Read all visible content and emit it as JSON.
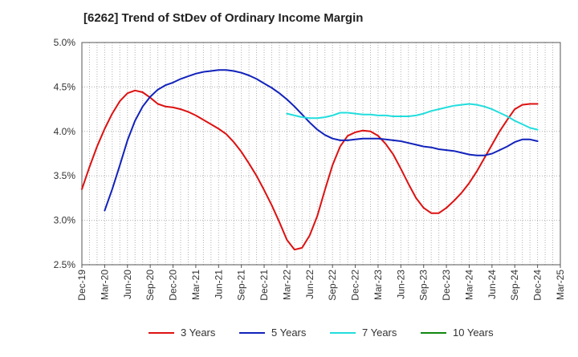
{
  "chart_data": {
    "type": "line",
    "title": "[6262]  Trend of StDev of Ordinary Income Margin",
    "xlabel": "",
    "ylabel": "",
    "x_ticks": [
      "Dec-19",
      "Mar-20",
      "Jun-20",
      "Sep-20",
      "Dec-20",
      "Mar-21",
      "Jun-21",
      "Sep-21",
      "Dec-21",
      "Mar-22",
      "Jun-22",
      "Sep-22",
      "Dec-22",
      "Mar-23",
      "Jun-23",
      "Sep-23",
      "Dec-23",
      "Mar-24",
      "Jun-24",
      "Sep-24",
      "Dec-24",
      "Mar-25"
    ],
    "y_ticks": [
      "2.5%",
      "3.0%",
      "3.5%",
      "4.0%",
      "4.5%",
      "5.0%"
    ],
    "ylim": [
      2.5,
      5.0
    ],
    "grid": true,
    "legend_position": "bottom",
    "series": [
      {
        "name": "3 Years",
        "color": "#dd1111",
        "x": [
          "Dec-19",
          "Jan-20",
          "Feb-20",
          "Mar-20",
          "Apr-20",
          "May-20",
          "Jun-20",
          "Jul-20",
          "Aug-20",
          "Sep-20",
          "Oct-20",
          "Nov-20",
          "Dec-20",
          "Jan-21",
          "Feb-21",
          "Mar-21",
          "Apr-21",
          "May-21",
          "Jun-21",
          "Jul-21",
          "Aug-21",
          "Sep-21",
          "Oct-21",
          "Nov-21",
          "Dec-21",
          "Jan-22",
          "Feb-22",
          "Mar-22",
          "Apr-22",
          "May-22",
          "Jun-22",
          "Jul-22",
          "Aug-22",
          "Sep-22",
          "Oct-22",
          "Nov-22",
          "Dec-22",
          "Jan-23",
          "Feb-23",
          "Mar-23",
          "Apr-23",
          "May-23",
          "Jun-23",
          "Jul-23",
          "Aug-23",
          "Sep-23",
          "Oct-23",
          "Nov-23",
          "Dec-23",
          "Jan-24",
          "Feb-24",
          "Mar-24",
          "Apr-24",
          "May-24",
          "Jun-24",
          "Jul-24",
          "Aug-24",
          "Sep-24",
          "Oct-24",
          "Nov-24",
          "Dec-24"
        ],
        "values": [
          3.35,
          3.6,
          3.83,
          4.03,
          4.2,
          4.34,
          4.43,
          4.46,
          4.44,
          4.38,
          4.31,
          4.28,
          4.27,
          4.25,
          4.22,
          4.18,
          4.13,
          4.08,
          4.03,
          3.97,
          3.88,
          3.77,
          3.64,
          3.5,
          3.34,
          3.17,
          2.98,
          2.78,
          2.67,
          2.69,
          2.83,
          3.05,
          3.34,
          3.62,
          3.83,
          3.95,
          3.99,
          4.01,
          4.0,
          3.95,
          3.86,
          3.74,
          3.58,
          3.41,
          3.25,
          3.14,
          3.08,
          3.08,
          3.14,
          3.22,
          3.31,
          3.42,
          3.55,
          3.7,
          3.85,
          4.0,
          4.13,
          4.25,
          4.3,
          4.31,
          4.31
        ]
      },
      {
        "name": "5 Years",
        "color": "#1122bb",
        "x": [
          "Mar-20",
          "Apr-20",
          "May-20",
          "Jun-20",
          "Jul-20",
          "Aug-20",
          "Sep-20",
          "Oct-20",
          "Nov-20",
          "Dec-20",
          "Jan-21",
          "Feb-21",
          "Mar-21",
          "Apr-21",
          "May-21",
          "Jun-21",
          "Jul-21",
          "Aug-21",
          "Sep-21",
          "Oct-21",
          "Nov-21",
          "Dec-21",
          "Jan-22",
          "Feb-22",
          "Mar-22",
          "Apr-22",
          "May-22",
          "Jun-22",
          "Jul-22",
          "Aug-22",
          "Sep-22",
          "Oct-22",
          "Nov-22",
          "Dec-22",
          "Jan-23",
          "Feb-23",
          "Mar-23",
          "Apr-23",
          "May-23",
          "Jun-23",
          "Jul-23",
          "Aug-23",
          "Sep-23",
          "Oct-23",
          "Nov-23",
          "Dec-23",
          "Jan-24",
          "Feb-24",
          "Mar-24",
          "Apr-24",
          "May-24",
          "Jun-24",
          "Jul-24",
          "Aug-24",
          "Sep-24",
          "Oct-24",
          "Nov-24",
          "Dec-24"
        ],
        "values": [
          3.11,
          3.35,
          3.62,
          3.9,
          4.12,
          4.28,
          4.39,
          4.47,
          4.52,
          4.55,
          4.59,
          4.62,
          4.65,
          4.67,
          4.68,
          4.69,
          4.69,
          4.68,
          4.66,
          4.63,
          4.59,
          4.54,
          4.49,
          4.43,
          4.36,
          4.28,
          4.19,
          4.1,
          4.02,
          3.96,
          3.92,
          3.9,
          3.9,
          3.91,
          3.92,
          3.92,
          3.92,
          3.91,
          3.9,
          3.89,
          3.87,
          3.85,
          3.83,
          3.82,
          3.8,
          3.79,
          3.78,
          3.76,
          3.74,
          3.73,
          3.73,
          3.75,
          3.79,
          3.83,
          3.88,
          3.91,
          3.91,
          3.89
        ]
      },
      {
        "name": "7 Years",
        "color": "#22dddd",
        "x": [
          "Mar-22",
          "Apr-22",
          "May-22",
          "Jun-22",
          "Jul-22",
          "Aug-22",
          "Sep-22",
          "Oct-22",
          "Nov-22",
          "Dec-22",
          "Jan-23",
          "Feb-23",
          "Mar-23",
          "Apr-23",
          "May-23",
          "Jun-23",
          "Jul-23",
          "Aug-23",
          "Sep-23",
          "Oct-23",
          "Nov-23",
          "Dec-23",
          "Jan-24",
          "Feb-24",
          "Mar-24",
          "Apr-24",
          "May-24",
          "Jun-24",
          "Jul-24",
          "Aug-24",
          "Sep-24",
          "Oct-24",
          "Nov-24",
          "Dec-24"
        ],
        "values": [
          4.2,
          4.18,
          4.16,
          4.15,
          4.15,
          4.16,
          4.18,
          4.21,
          4.21,
          4.2,
          4.19,
          4.19,
          4.18,
          4.18,
          4.17,
          4.17,
          4.17,
          4.18,
          4.2,
          4.23,
          4.25,
          4.27,
          4.29,
          4.3,
          4.31,
          4.3,
          4.28,
          4.25,
          4.21,
          4.17,
          4.12,
          4.08,
          4.04,
          4.02
        ]
      },
      {
        "name": "10 Years",
        "color": "#118811",
        "x": [],
        "values": []
      }
    ]
  }
}
